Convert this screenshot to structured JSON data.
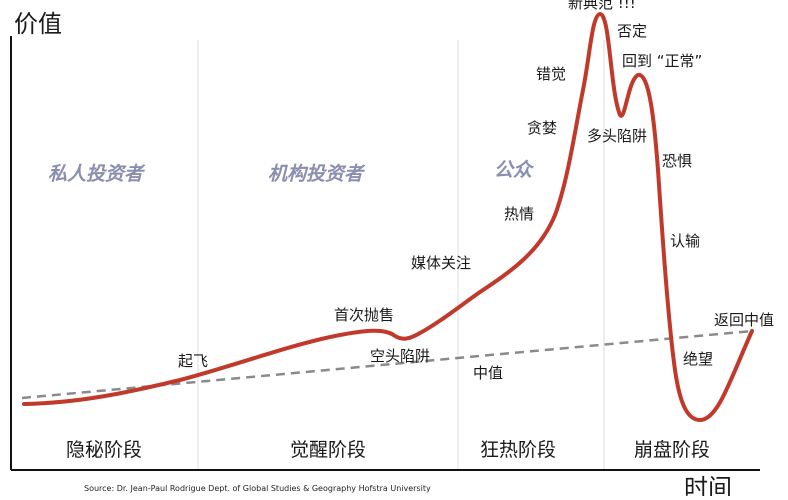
{
  "axes": {
    "y_title": "价值",
    "x_title": "时间"
  },
  "investors": [
    "私人投资者",
    "机构投资者",
    "公众"
  ],
  "phases": [
    "隐秘阶段",
    "觉醒阶段",
    "狂热阶段",
    "崩盘阶段"
  ],
  "annotations": {
    "takeoff": "起飞",
    "first_sell": "首次抛售",
    "bear_trap": "空头陷阱",
    "media": "媒体关注",
    "enthusiasm": "热情",
    "greed": "贪婪",
    "delusion": "错觉",
    "new_paradigm": "新典范 !!!",
    "denial": "否定",
    "return_normal": "回到 “正常”",
    "bull_trap": "多头陷阱",
    "fear": "恐惧",
    "capitulation": "认输",
    "despair": "绝望",
    "return_mean": "返回中值",
    "mean": "中值"
  },
  "source": "Source: Dr. Jean-Paul Rodrigue Dept. of Global Studies & Geography Hofstra University",
  "colors": {
    "curve": "#c0392b",
    "mean_line": "#8a8a8a",
    "investor_text": "#8a8fb0",
    "axis": "#111111"
  }
}
